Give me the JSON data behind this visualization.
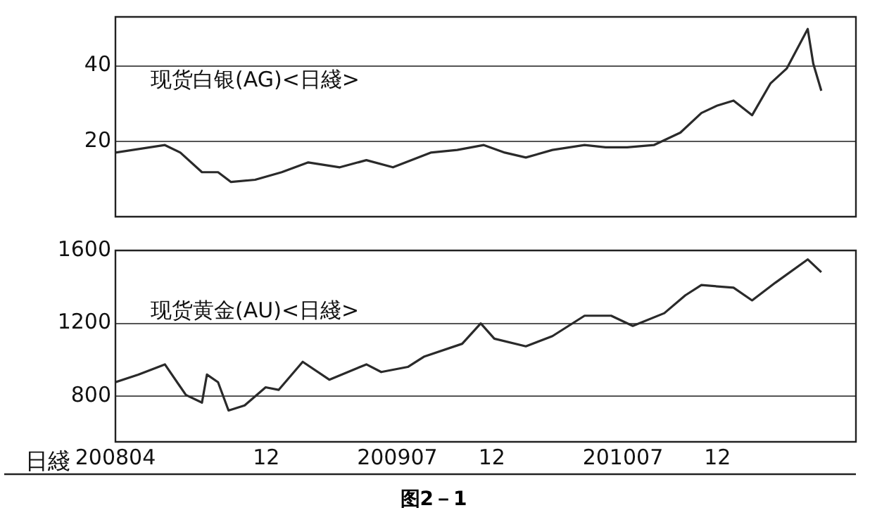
{
  "chart_data": [
    {
      "type": "line",
      "title": "现货白银(AG)<日綫>",
      "color": "#2a2a2a",
      "grid": "y",
      "tick_labels": "y",
      "xlim": [
        "2008-04-01",
        "2011-07-13"
      ],
      "ylim": [
        0,
        53
      ],
      "yticks": [
        20,
        40
      ],
      "x": [
        "2008-04-01",
        "2008-06-20",
        "2008-07-15",
        "2008-08-19",
        "2008-09-14",
        "2008-10-05",
        "2008-11-13",
        "2008-12-26",
        "2009-02-07",
        "2009-03-30",
        "2009-05-12",
        "2009-06-24",
        "2009-08-24",
        "2009-10-06",
        "2009-11-18",
        "2009-12-22",
        "2010-01-25",
        "2010-03-09",
        "2010-04-30",
        "2010-06-03",
        "2010-07-08",
        "2010-08-20",
        "2010-10-02",
        "2010-11-05",
        "2010-12-01",
        "2010-12-27",
        "2011-01-26",
        "2011-02-25",
        "2011-03-23",
        "2011-04-26",
        "2011-05-05",
        "2011-05-18"
      ],
      "values": [
        17,
        19,
        17,
        11.8,
        11.8,
        9.2,
        9.8,
        11.8,
        14.4,
        13.1,
        15,
        13.1,
        17,
        17.7,
        19,
        17,
        15.7,
        17.7,
        19,
        18.4,
        18.4,
        19,
        22.3,
        27.5,
        29.5,
        30.8,
        26.9,
        35.4,
        39.3,
        49.8,
        40.6,
        33.4
      ]
    },
    {
      "type": "line",
      "title": "现货黄金(AU)<日綫>",
      "xlabel": "日綫",
      "color": "#2a2a2a",
      "grid": "y",
      "xlim": [
        "2008-04-01",
        "2011-07-13"
      ],
      "ylim": [
        550,
        1600
      ],
      "yticks": [
        800,
        1200,
        1600
      ],
      "xticks": [
        {
          "value": "2008-04",
          "label": "200804"
        },
        {
          "value": "2008-12",
          "label": "12"
        },
        {
          "value": "2009-07",
          "label": "200907"
        },
        {
          "value": "2009-12",
          "label": "12"
        },
        {
          "value": "2010-07",
          "label": "201007"
        },
        {
          "value": "2010-12",
          "label": "12"
        }
      ],
      "x": [
        "2008-04-01",
        "2008-05-08",
        "2008-06-20",
        "2008-07-24",
        "2008-08-19",
        "2008-08-27",
        "2008-09-14",
        "2008-10-01",
        "2008-10-27",
        "2008-11-30",
        "2008-12-21",
        "2009-01-29",
        "2009-03-13",
        "2009-05-12",
        "2009-06-05",
        "2009-07-18",
        "2009-08-13",
        "2009-10-14",
        "2009-11-13",
        "2009-12-05",
        "2010-01-25",
        "2010-03-09",
        "2010-04-30",
        "2010-06-12",
        "2010-07-17",
        "2010-09-06",
        "2010-10-10",
        "2010-11-05",
        "2010-12-27",
        "2011-01-26",
        "2011-03-05",
        "2011-04-26",
        "2011-05-18"
      ],
      "values": [
        877,
        919,
        975,
        807,
        765,
        919,
        877,
        722,
        750,
        849,
        835,
        989,
        891,
        975,
        933,
        961,
        1017,
        1088,
        1200,
        1116,
        1074,
        1130,
        1242,
        1242,
        1186,
        1256,
        1354,
        1410,
        1396,
        1326,
        1424,
        1551,
        1481
      ],
      "annotations": [
        "图2－1"
      ]
    }
  ]
}
